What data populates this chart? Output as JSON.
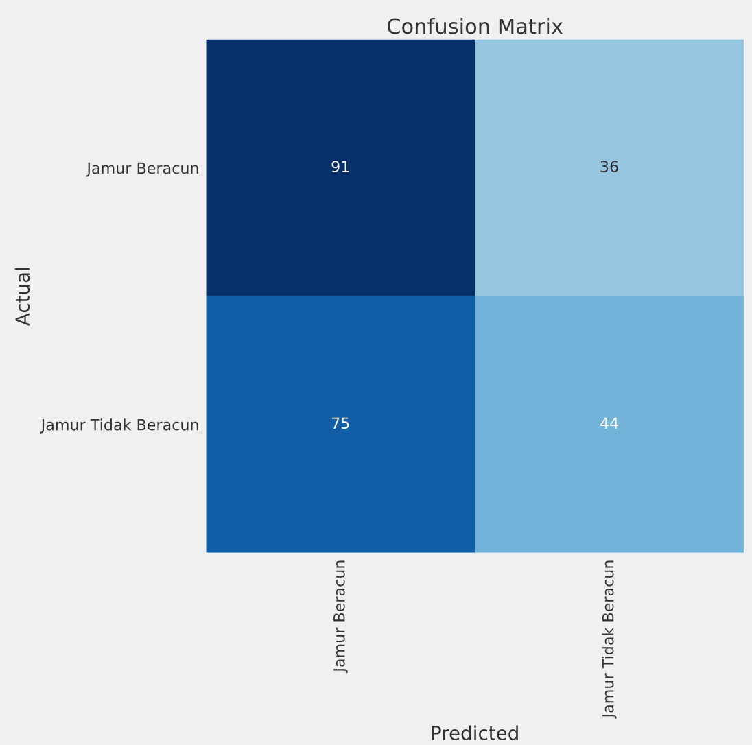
{
  "chart_data": {
    "type": "heatmap",
    "title": "Confusion Matrix",
    "xlabel": "Predicted",
    "ylabel": "Actual",
    "categories": [
      "Jamur Beracun",
      "Jamur Tidak Beracun"
    ],
    "y_categories": [
      "Jamur Beracun",
      "Jamur Tidak Beracun"
    ],
    "cells": [
      [
        91,
        36
      ],
      [
        75,
        44
      ]
    ],
    "data_labels": true,
    "grid": false
  }
}
